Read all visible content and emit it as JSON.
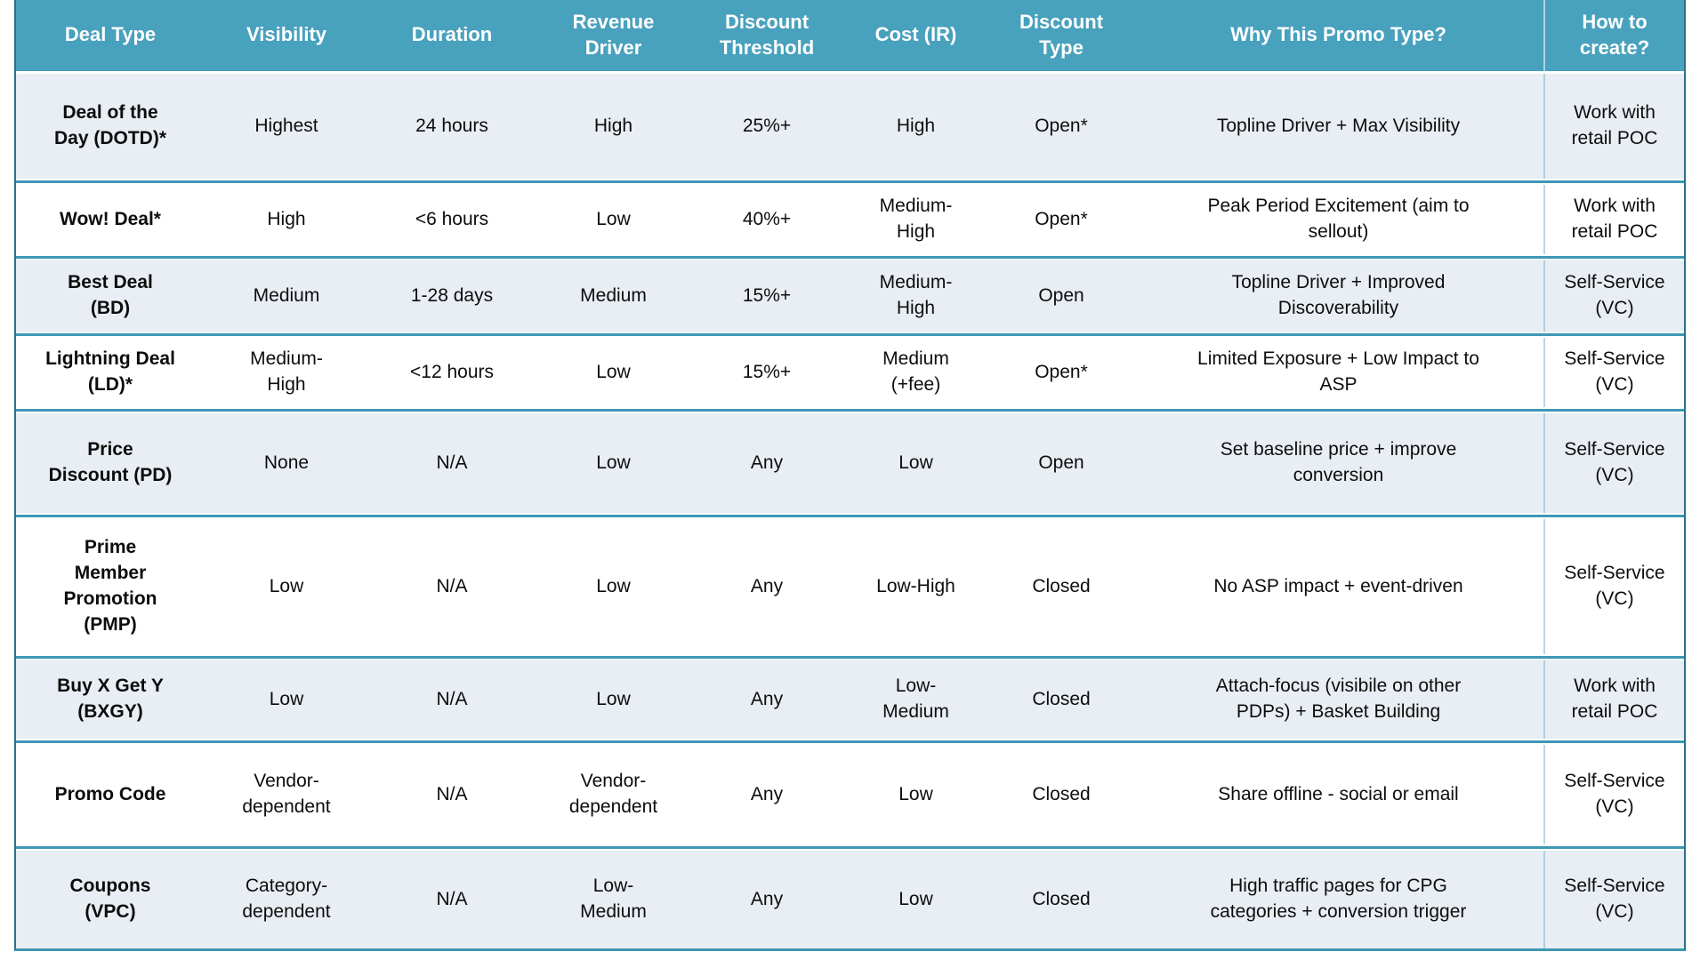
{
  "colors": {
    "header_bg": "#48a1bd",
    "row_alt_bg": "#e8eef3",
    "row_bg": "#ffffff",
    "rule": "#3d98b6",
    "outer_border": "#2c6e88",
    "header_text": "#ffffff",
    "body_text": "#0d0d0d"
  },
  "table": {
    "columns": [
      {
        "key": "deal_type",
        "label": "Deal Type"
      },
      {
        "key": "visibility",
        "label": "Visibility"
      },
      {
        "key": "duration",
        "label": "Duration"
      },
      {
        "key": "revenue_driver",
        "label": "Revenue\nDriver"
      },
      {
        "key": "discount_threshold",
        "label": "Discount\nThreshold"
      },
      {
        "key": "cost_ir",
        "label": "Cost (IR)"
      },
      {
        "key": "discount_type",
        "label": "Discount\nType"
      },
      {
        "key": "why",
        "label": "Why This Promo Type?"
      },
      {
        "key": "how_to_create",
        "label": "How to\ncreate?"
      }
    ],
    "rows": [
      {
        "deal_type": "Deal of the\nDay (DOTD)*",
        "visibility": "Highest",
        "duration": "24 hours",
        "revenue_driver": "High",
        "discount_threshold": "25%+",
        "cost_ir": "High",
        "discount_type": "Open*",
        "why": "Topline Driver + Max Visibility",
        "how_to_create": "Work with\nretail POC"
      },
      {
        "deal_type": "Wow! Deal*",
        "visibility": "High",
        "duration": "<6 hours",
        "revenue_driver": "Low",
        "discount_threshold": "40%+",
        "cost_ir": "Medium-\nHigh",
        "discount_type": "Open*",
        "why": "Peak Period Excitement (aim to\nsellout)",
        "how_to_create": "Work with\nretail POC"
      },
      {
        "deal_type": "Best Deal\n(BD)",
        "visibility": "Medium",
        "duration": "1-28 days",
        "revenue_driver": "Medium",
        "discount_threshold": "15%+",
        "cost_ir": "Medium-\nHigh",
        "discount_type": "Open",
        "why": "Topline Driver + Improved\nDiscoverability",
        "how_to_create": "Self-Service\n(VC)"
      },
      {
        "deal_type": "Lightning Deal\n(LD)*",
        "visibility": "Medium-\nHigh",
        "duration": "<12 hours",
        "revenue_driver": "Low",
        "discount_threshold": "15%+",
        "cost_ir": "Medium\n(+fee)",
        "discount_type": "Open*",
        "why": "Limited Exposure + Low Impact to\nASP",
        "how_to_create": "Self-Service\n(VC)"
      },
      {
        "deal_type": "Price\nDiscount (PD)",
        "visibility": "None",
        "duration": "N/A",
        "revenue_driver": "Low",
        "discount_threshold": "Any",
        "cost_ir": "Low",
        "discount_type": "Open",
        "why": "Set baseline price + improve\nconversion",
        "how_to_create": "Self-Service\n(VC)"
      },
      {
        "deal_type": "Prime\nMember\nPromotion\n(PMP)",
        "visibility": "Low",
        "duration": "N/A",
        "revenue_driver": "Low",
        "discount_threshold": "Any",
        "cost_ir": "Low-High",
        "discount_type": "Closed",
        "why": "No ASP impact + event-driven",
        "how_to_create": "Self-Service\n(VC)"
      },
      {
        "deal_type": "Buy X Get Y\n(BXGY)",
        "visibility": "Low",
        "duration": "N/A",
        "revenue_driver": "Low",
        "discount_threshold": "Any",
        "cost_ir": "Low-\nMedium",
        "discount_type": "Closed",
        "why": "Attach-focus (visibile on other\nPDPs) + Basket Building",
        "how_to_create": "Work with\nretail POC"
      },
      {
        "deal_type": "Promo Code",
        "visibility": "Vendor-\ndependent",
        "duration": "N/A",
        "revenue_driver": "Vendor-\ndependent",
        "discount_threshold": "Any",
        "cost_ir": "Low",
        "discount_type": "Closed",
        "why": "Share offline - social or email",
        "how_to_create": "Self-Service\n(VC)"
      },
      {
        "deal_type": "Coupons\n(VPC)",
        "visibility": "Category-\ndependent",
        "duration": "N/A",
        "revenue_driver": "Low-\nMedium",
        "discount_threshold": "Any",
        "cost_ir": "Low",
        "discount_type": "Closed",
        "why": "High traffic pages for CPG\ncategories + conversion trigger",
        "how_to_create": "Self-Service\n(VC)"
      }
    ]
  }
}
